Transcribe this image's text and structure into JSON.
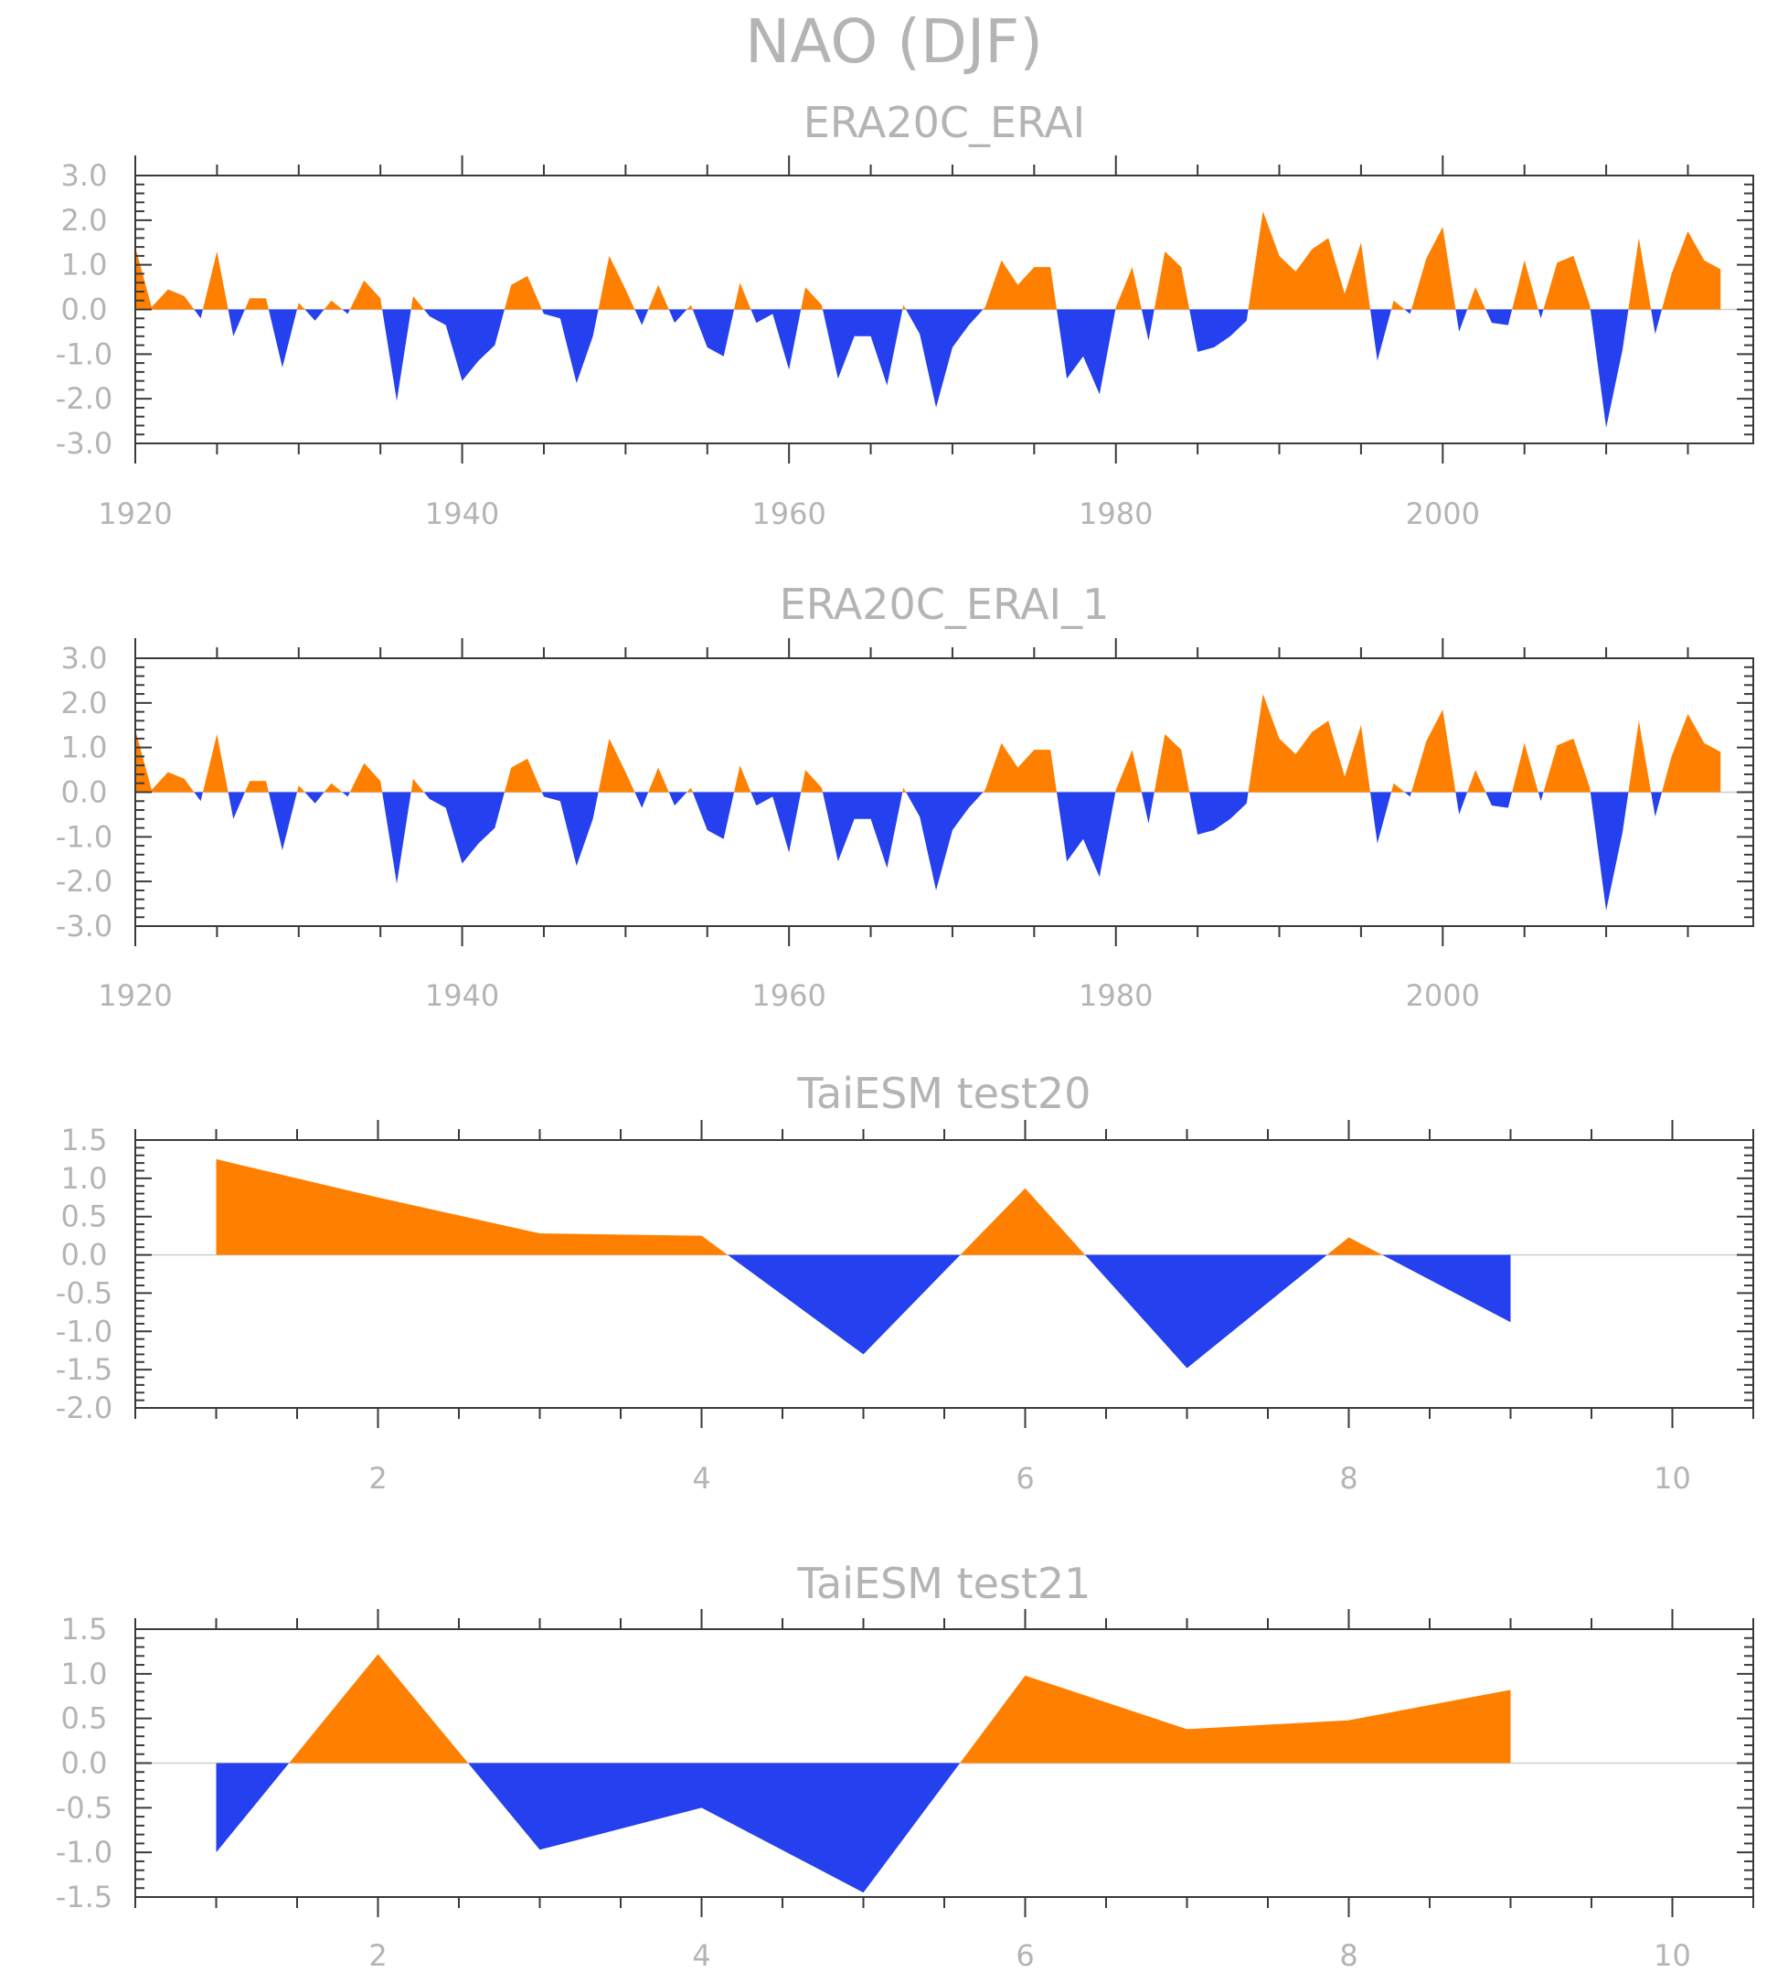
{
  "title": "NAO (DJF)",
  "colors": {
    "positive": "#ff8000",
    "negative": "#2540ee",
    "text": "#b4b4b4",
    "frame": "#3a3a3a",
    "zero_line": "#cfcfcf"
  },
  "chart_data": [
    {
      "type": "area",
      "title": "ERA20C_ERAI",
      "x_start": 1920,
      "xlim": [
        1920,
        2019
      ],
      "ylim": [
        -3,
        3
      ],
      "yticks": [
        "3.0",
        "2.0",
        "1.0",
        "0.0",
        "-1.0",
        "-2.0",
        "-3.0"
      ],
      "xticks": [
        "1920",
        "1940",
        "1960",
        "1980",
        "2000"
      ],
      "values": [
        1.4,
        0.05,
        0.45,
        0.3,
        -0.2,
        1.3,
        -0.6,
        0.25,
        0.25,
        -1.3,
        0.15,
        -0.25,
        0.2,
        -0.1,
        0.65,
        0.25,
        -2.05,
        0.3,
        -0.15,
        -0.35,
        -1.6,
        -1.15,
        -0.8,
        0.55,
        0.75,
        -0.1,
        -0.2,
        -1.65,
        -0.6,
        1.2,
        0.45,
        -0.35,
        0.55,
        -0.3,
        0.1,
        -0.85,
        -1.05,
        0.6,
        -0.3,
        -0.1,
        -1.35,
        0.5,
        0.1,
        -1.55,
        -0.6,
        -0.6,
        -1.7,
        0.1,
        -0.55,
        -2.2,
        -0.85,
        -0.35,
        0.05,
        1.1,
        0.55,
        0.95,
        0.95,
        -1.55,
        -1.05,
        -1.9,
        0.05,
        0.95,
        -0.7,
        1.3,
        0.95,
        -0.95,
        -0.85,
        -0.6,
        -0.25,
        2.2,
        1.2,
        0.85,
        1.35,
        1.6,
        0.35,
        1.5,
        -1.15,
        0.2,
        -0.1,
        1.15,
        1.85,
        -0.5,
        0.5,
        -0.3,
        -0.35,
        1.1,
        -0.2,
        1.05,
        1.2,
        0.1,
        -2.65,
        -0.9,
        1.6,
        -0.55,
        0.8,
        1.75,
        1.1,
        0.9
      ]
    },
    {
      "type": "area",
      "title": "ERA20C_ERAI_1",
      "x_start": 1920,
      "xlim": [
        1920,
        2019
      ],
      "ylim": [
        -3,
        3
      ],
      "yticks": [
        "3.0",
        "2.0",
        "1.0",
        "0.0",
        "-1.0",
        "-2.0",
        "-3.0"
      ],
      "xticks": [
        "1920",
        "1940",
        "1960",
        "1980",
        "2000"
      ],
      "values": [
        1.4,
        0.05,
        0.45,
        0.3,
        -0.2,
        1.3,
        -0.6,
        0.25,
        0.25,
        -1.3,
        0.15,
        -0.25,
        0.2,
        -0.1,
        0.65,
        0.25,
        -2.05,
        0.3,
        -0.15,
        -0.35,
        -1.6,
        -1.15,
        -0.8,
        0.55,
        0.75,
        -0.1,
        -0.2,
        -1.65,
        -0.6,
        1.2,
        0.45,
        -0.35,
        0.55,
        -0.3,
        0.1,
        -0.85,
        -1.05,
        0.6,
        -0.3,
        -0.1,
        -1.35,
        0.5,
        0.1,
        -1.55,
        -0.6,
        -0.6,
        -1.7,
        0.1,
        -0.55,
        -2.2,
        -0.85,
        -0.35,
        0.05,
        1.1,
        0.55,
        0.95,
        0.95,
        -1.55,
        -1.05,
        -1.9,
        0.05,
        0.95,
        -0.7,
        1.3,
        0.95,
        -0.95,
        -0.85,
        -0.6,
        -0.25,
        2.2,
        1.2,
        0.85,
        1.35,
        1.6,
        0.35,
        1.5,
        -1.15,
        0.2,
        -0.1,
        1.15,
        1.85,
        -0.5,
        0.5,
        -0.3,
        -0.35,
        1.1,
        -0.2,
        1.05,
        1.2,
        0.1,
        -2.65,
        -0.9,
        1.6,
        -0.55,
        0.8,
        1.75,
        1.1,
        0.9
      ]
    },
    {
      "type": "area",
      "title": "TaiESM test20",
      "x_start": 1,
      "xlim": [
        0.5,
        10.5
      ],
      "ylim": [
        -2,
        1.5
      ],
      "yticks": [
        "1.5",
        "1.0",
        "0.5",
        "0.0",
        "-0.5",
        "-1.0",
        "-1.5",
        "-2.0"
      ],
      "xticks": [
        "2",
        "4",
        "6",
        "8",
        "10"
      ],
      "values": [
        1.25,
        0.75,
        0.28,
        0.25,
        -1.3,
        0.87,
        -1.48,
        0.23,
        -0.88
      ]
    },
    {
      "type": "area",
      "title": "TaiESM test21",
      "x_start": 1,
      "xlim": [
        0.5,
        10.5
      ],
      "ylim": [
        -1.5,
        1.5
      ],
      "yticks": [
        "1.5",
        "1.0",
        "0.5",
        "0.0",
        "-0.5",
        "-1.0",
        "-1.5"
      ],
      "xticks": [
        "2",
        "4",
        "6",
        "8",
        "10"
      ],
      "values": [
        -1.0,
        1.22,
        -0.97,
        -0.5,
        -1.45,
        0.98,
        0.38,
        0.48,
        0.82
      ]
    }
  ]
}
